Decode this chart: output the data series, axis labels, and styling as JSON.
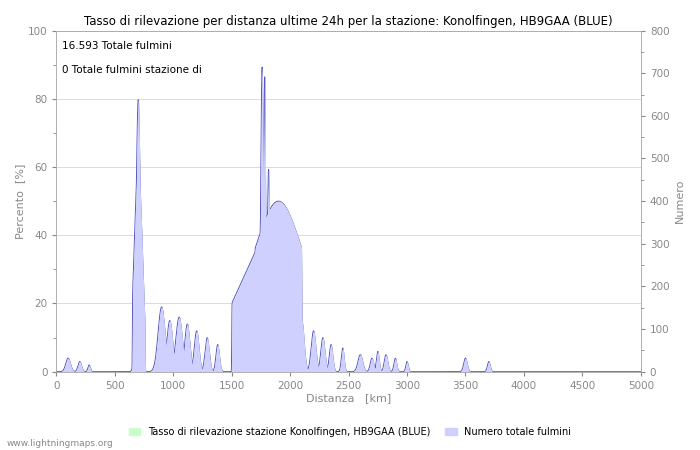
{
  "title": "Tasso di rilevazione per distanza ultime 24h per la stazione: Konolfingen, HB9GAA (BLUE)",
  "xlabel": "Distanza   [km]",
  "ylabel_left": "Percento  [%]",
  "ylabel_right": "Numero",
  "annotation_line1": "16.593 Totale fulmini",
  "annotation_line2": "0 Totale fulmini stazione di",
  "legend_label1": "Tasso di rilevazione stazione Konolfingen, HB9GAA (BLUE)",
  "legend_label2": "Numero totale fulmini",
  "watermark": "www.lightningmaps.org",
  "xlim": [
    0,
    5000
  ],
  "ylim_left": [
    0,
    100
  ],
  "ylim_right": [
    0,
    800
  ],
  "xticks": [
    0,
    500,
    1000,
    1500,
    2000,
    2500,
    3000,
    3500,
    4000,
    4500,
    5000
  ],
  "yticks_left": [
    0,
    20,
    40,
    60,
    80,
    100
  ],
  "yticks_right": [
    0,
    100,
    200,
    300,
    400,
    500,
    600,
    700,
    800
  ],
  "fill_color_green": "#c8ffc8",
  "fill_color_blue": "#d0d0ff",
  "line_color": "#5555bb",
  "background_color": "#ffffff",
  "grid_color": "#cccccc"
}
